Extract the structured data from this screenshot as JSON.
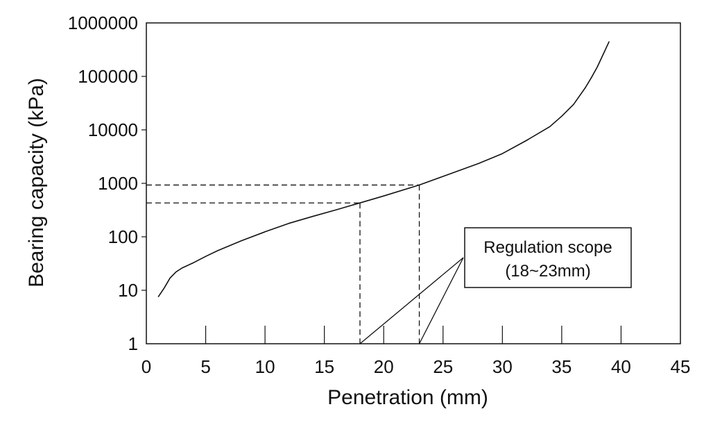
{
  "chart_data": {
    "type": "line",
    "xlabel": "Penetration (mm)",
    "ylabel": "Bearing capacity (kPa)",
    "xlim": [
      0,
      45
    ],
    "ylim": [
      1,
      1000000
    ],
    "yscale": "log",
    "grid": false,
    "xticks": [
      0,
      5,
      10,
      15,
      20,
      25,
      30,
      35,
      40,
      45
    ],
    "xtick_labels": [
      "0",
      "5",
      "10",
      "15",
      "20",
      "25",
      "30",
      "35",
      "40",
      "45"
    ],
    "yticks": [
      1,
      10,
      100,
      1000,
      10000,
      100000,
      1000000
    ],
    "ytick_labels": [
      "1",
      "10",
      "100",
      "1000",
      "10000",
      "100000",
      "1000000"
    ],
    "series": [
      {
        "x": [
          1,
          1.5,
          2,
          2.5,
          3,
          4,
          5,
          6,
          8,
          10,
          12,
          14,
          16,
          18,
          20,
          23,
          25,
          28,
          30,
          32,
          34,
          35,
          36,
          37,
          37.5,
          38,
          38.5,
          39
        ],
        "y": [
          7.5,
          11,
          17,
          22,
          26,
          33,
          43,
          55,
          84,
          124,
          178,
          240,
          320,
          430,
          580,
          930,
          1350,
          2350,
          3600,
          6300,
          11500,
          18000,
          30000,
          62000,
          95000,
          150000,
          260000,
          450000
        ]
      }
    ],
    "reference_lines": [
      {
        "x": 18,
        "y": 430
      },
      {
        "x": 23,
        "y": 930
      }
    ],
    "annotation": {
      "text_line1": "Regulation scope",
      "text_line2": "(18~23mm)"
    }
  }
}
